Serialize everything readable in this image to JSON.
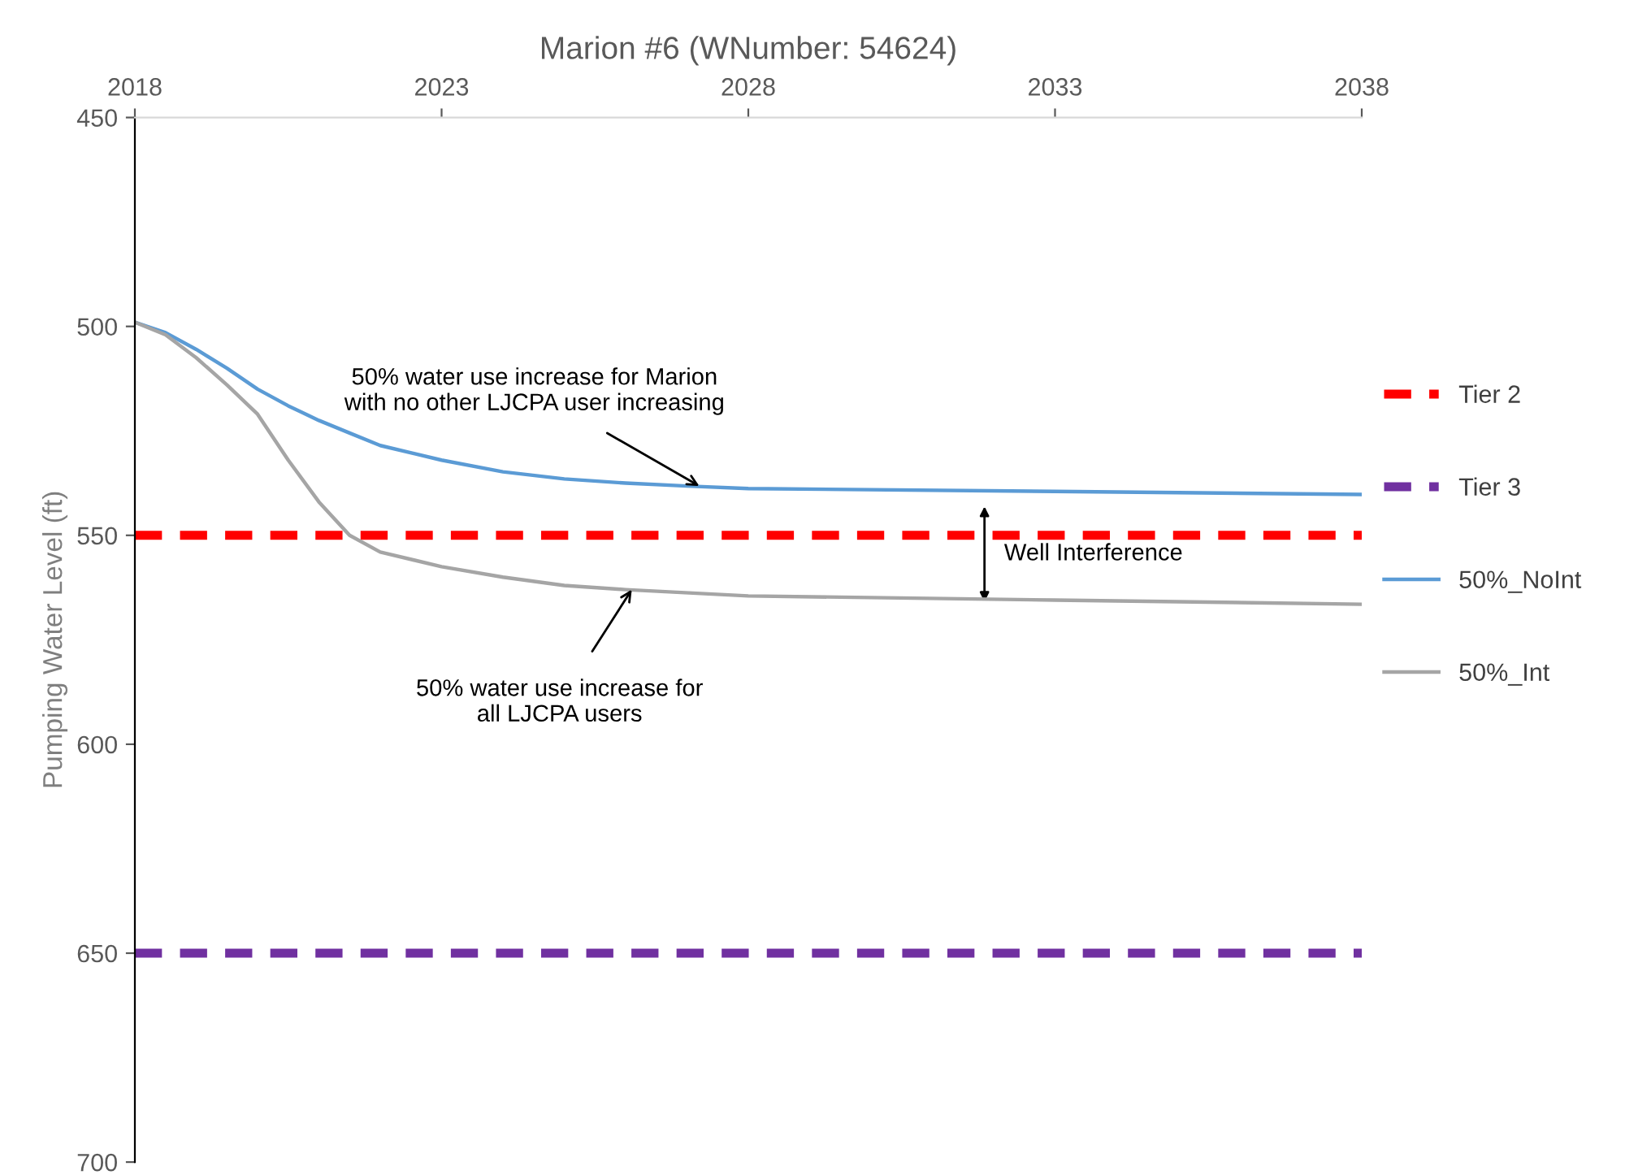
{
  "chart_data": {
    "type": "line",
    "title": "Marion #6 (WNumber: 54624)",
    "ylabel": "Pumping Water Level (ft)",
    "xlim": [
      2018,
      2038
    ],
    "xticks": [
      2018,
      2023,
      2028,
      2033,
      2038
    ],
    "ylim": [
      700,
      450
    ],
    "yticks": [
      450,
      500,
      550,
      600,
      650,
      700
    ],
    "grid": false,
    "legend": "right",
    "marker": "none",
    "series": [
      {
        "name": "Tier 2",
        "color": "#ff0000",
        "line_style": "dashed",
        "x": [
          2018,
          2038
        ],
        "values": [
          550,
          550
        ]
      },
      {
        "name": "Tier 3",
        "color": "#7030a0",
        "line_style": "dashed",
        "x": [
          2018,
          2038
        ],
        "values": [
          650,
          650
        ]
      },
      {
        "name": "50%_NoInt",
        "color": "#5b9bd5",
        "line_style": "solid",
        "x": [
          2018,
          2018.5,
          2019,
          2019.5,
          2020,
          2020.5,
          2021,
          2021.5,
          2022,
          2023,
          2024,
          2025,
          2026,
          2027,
          2028,
          2033,
          2038
        ],
        "values": [
          499,
          501.5,
          505.5,
          510,
          515,
          519,
          522.5,
          525.5,
          528.5,
          532,
          534.8,
          536.5,
          537.5,
          538.2,
          538.8,
          539.5,
          540.2
        ]
      },
      {
        "name": "50%_Int",
        "color": "#a5a5a5",
        "line_style": "solid",
        "x": [
          2018,
          2018.5,
          2019,
          2019.5,
          2020,
          2020.5,
          2021,
          2021.5,
          2022,
          2023,
          2024,
          2025,
          2026,
          2028,
          2033,
          2038
        ],
        "values": [
          499,
          502,
          507.5,
          514,
          521,
          532,
          542,
          550,
          554,
          557.5,
          560,
          562,
          563,
          564.5,
          565.5,
          566.5
        ]
      }
    ],
    "annotations": [
      {
        "text": "50% water use increase for Marion\nwith no other LJCPA user increasing",
        "x": 2027.2,
        "y": 538.2
      },
      {
        "text": "50% water use increase for\nall LJCPA users",
        "x": 2026.1,
        "y": 563
      },
      "Well Interference"
    ]
  }
}
